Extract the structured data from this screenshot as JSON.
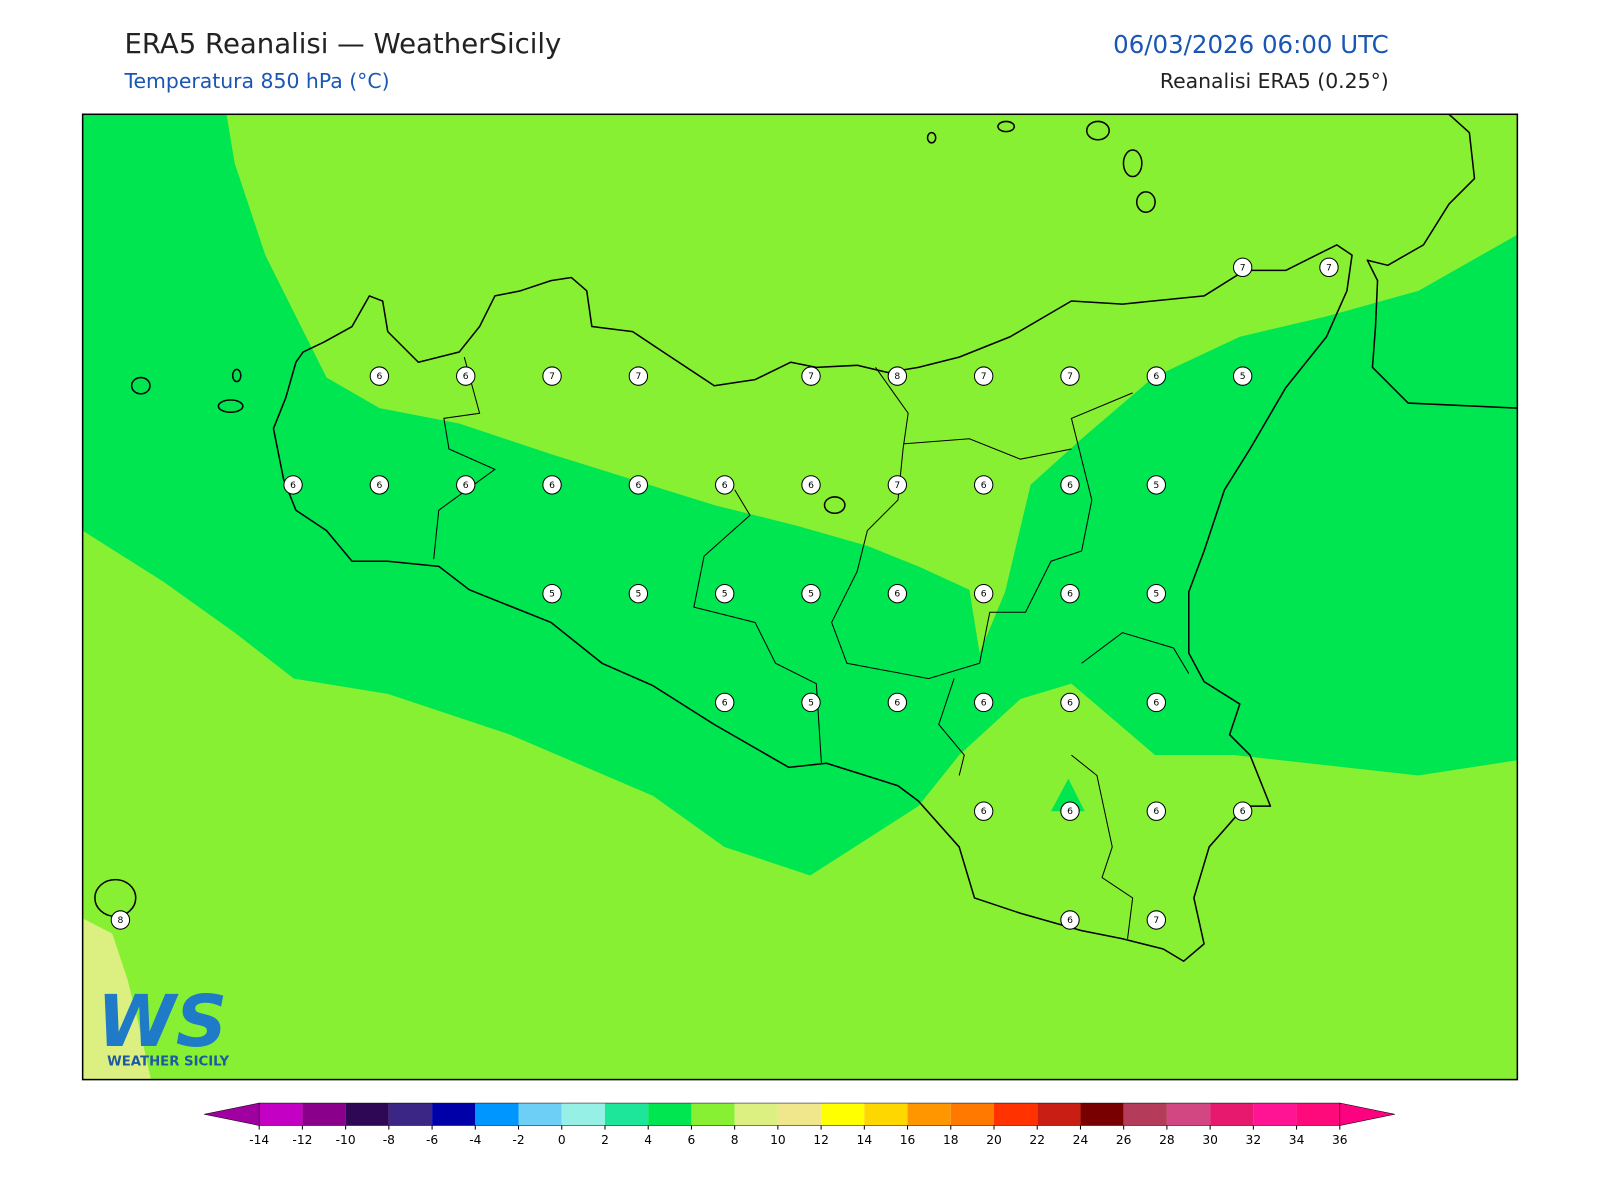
{
  "header": {
    "title": "ERA5 Reanalisi — WeatherSicily",
    "subtitle": "Temperatura 850 hPa (°C)",
    "datetime": "06/03/2026 06:00 UTC",
    "source": "Reanalisi ERA5 (0.25°)"
  },
  "map": {
    "grid": [
      [
        null,
        null,
        null,
        null,
        null,
        null,
        null,
        null,
        null,
        null,
        null,
        null,
        null,
        7,
        7
      ],
      [
        null,
        null,
        null,
        6,
        6,
        7,
        7,
        null,
        7,
        8,
        7,
        7,
        6,
        5,
        null
      ],
      [
        null,
        null,
        6,
        6,
        6,
        6,
        6,
        6,
        6,
        7,
        6,
        6,
        5,
        null,
        null
      ],
      [
        null,
        null,
        null,
        null,
        null,
        5,
        5,
        5,
        5,
        6,
        6,
        6,
        5,
        null,
        null
      ],
      [
        null,
        null,
        null,
        null,
        null,
        null,
        null,
        6,
        5,
        6,
        6,
        6,
        6,
        null,
        null
      ],
      [
        null,
        null,
        null,
        null,
        null,
        null,
        null,
        null,
        null,
        null,
        6,
        6,
        6,
        6,
        null
      ],
      [
        8,
        null,
        null,
        null,
        null,
        null,
        null,
        null,
        null,
        null,
        null,
        6,
        7,
        null,
        null
      ]
    ]
  },
  "colorbar": {
    "ticks": [
      -14,
      -12,
      -10,
      -8,
      -6,
      -4,
      -2,
      0,
      2,
      4,
      6,
      8,
      10,
      12,
      14,
      16,
      18,
      20,
      22,
      24,
      26,
      28,
      30,
      32,
      34,
      36
    ],
    "colors": [
      "#c400c4",
      "#8b008b",
      "#2e0854",
      "#3b2585",
      "#0000a8",
      "#0096ff",
      "#6ecff6",
      "#96f0e6",
      "#1de69a",
      "#00e650",
      "#88f032",
      "#dcf082",
      "#f0e68c",
      "#ffff00",
      "#ffd700",
      "#ff9600",
      "#ff7800",
      "#ff3200",
      "#c81e14",
      "#780000",
      "#b43c5a",
      "#d24682",
      "#e6196e",
      "#ff1493",
      "#ff0a7a"
    ],
    "under_color": "#a000a0",
    "over_color": "#ff0080"
  },
  "logo": {
    "mark": "WS",
    "text": "WEATHER SICILY"
  }
}
